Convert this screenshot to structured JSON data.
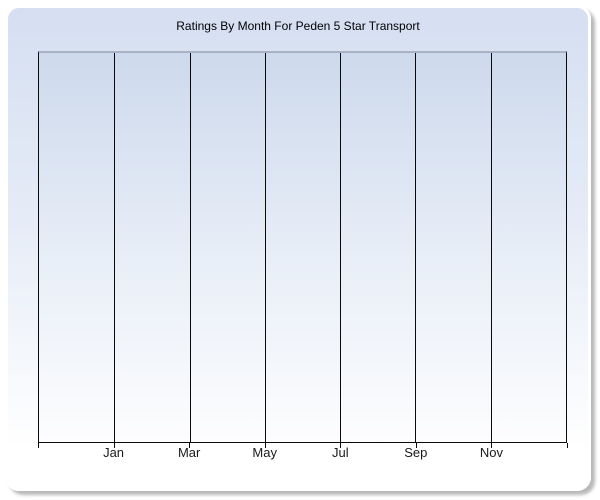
{
  "chart_title": "Ratings By Month For Peden 5 Star Transport",
  "chart_data": {
    "type": "line",
    "title": "Ratings By Month For Peden 5 Star Transport",
    "x_tick_labels": [
      "Jan",
      "Mar",
      "May",
      "Jul",
      "Sep",
      "Nov"
    ],
    "x_gridline_count": 8,
    "series": [],
    "has_plotted_data": false,
    "xlabel": "",
    "ylabel": "",
    "y_tick_labels": [],
    "legend": "none",
    "grid": "vertical gridlines only, empty plot"
  },
  "colors": {
    "panel_gradient_top": "#d5dff1",
    "panel_gradient_bottom": "#ffffff",
    "plot_gradient_top": "#cdd9ec",
    "plot_gradient_bottom": "#fdfdfe",
    "gridline": "#0a0a0a",
    "plot_top_border": "#a9b2c3",
    "axis": "#0a0a0a",
    "panel_border": "#ffffff",
    "shadow": "#b9b9b9",
    "title_text": "#000000",
    "tick_label_text": "#1a1a1a"
  }
}
